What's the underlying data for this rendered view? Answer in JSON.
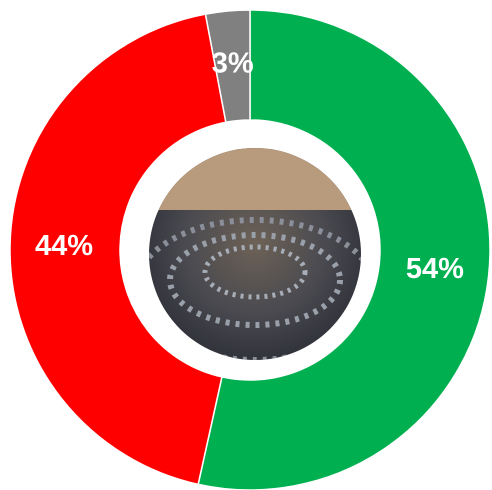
{
  "chart_data": {
    "type": "donut",
    "categories": [
      null,
      null,
      null
    ],
    "values": [
      54,
      44,
      3
    ],
    "value_labels": [
      "54%",
      "44%",
      "3%"
    ],
    "colors": [
      "#00b050",
      "#ff0000",
      "#808080"
    ]
  }
}
